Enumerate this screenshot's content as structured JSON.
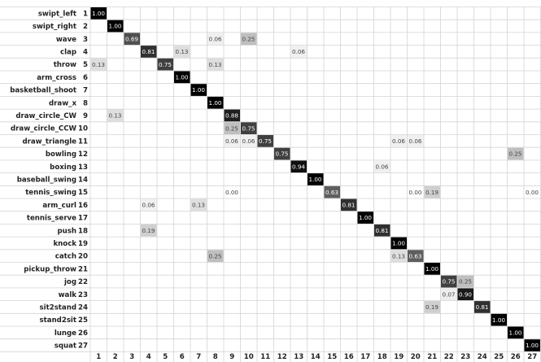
{
  "chart_data": {
    "type": "heatmap",
    "row_labels": [
      "swipt_left",
      "swipt_right",
      "wave",
      "clap",
      "throw",
      "arm_cross",
      "basketball_shoot",
      "draw_x",
      "draw_circle_CW",
      "draw_circle_CCW",
      "draw_triangle",
      "bowling",
      "boxing",
      "baseball_swing",
      "tennis_swing",
      "arm_curl",
      "tennis_serve",
      "push",
      "knock",
      "catch",
      "pickup_throw",
      "jog",
      "walk",
      "sit2stand",
      "stand2sit",
      "lunge",
      "squat"
    ],
    "row_numbers": [
      "1",
      "2",
      "3",
      "4",
      "5",
      "6",
      "7",
      "8",
      "9",
      "10",
      "11",
      "12",
      "13",
      "14",
      "15",
      "16",
      "17",
      "18",
      "19",
      "20",
      "21",
      "22",
      "23",
      "24",
      "25",
      "26",
      "27"
    ],
    "col_labels": [
      "1",
      "2",
      "3",
      "4",
      "5",
      "6",
      "7",
      "8",
      "9",
      "10",
      "11",
      "12",
      "13",
      "14",
      "15",
      "16",
      "17",
      "18",
      "19",
      "20",
      "21",
      "22",
      "23",
      "24",
      "25",
      "26",
      "27"
    ],
    "cells": [
      {
        "row": 1,
        "col": 1,
        "label": "1.00",
        "value": 1.0
      },
      {
        "row": 2,
        "col": 2,
        "label": "1.00",
        "value": 1.0
      },
      {
        "row": 3,
        "col": 3,
        "label": "0.69",
        "value": 0.69
      },
      {
        "row": 3,
        "col": 8,
        "label": "0.06",
        "value": 0.06
      },
      {
        "row": 3,
        "col": 10,
        "label": "0.25",
        "value": 0.25
      },
      {
        "row": 4,
        "col": 4,
        "label": "0.81",
        "value": 0.81
      },
      {
        "row": 4,
        "col": 6,
        "label": "0.13",
        "value": 0.13
      },
      {
        "row": 4,
        "col": 13,
        "label": "0.06",
        "value": 0.06
      },
      {
        "row": 5,
        "col": 1,
        "label": "0.13",
        "value": 0.13
      },
      {
        "row": 5,
        "col": 5,
        "label": "0.75",
        "value": 0.75
      },
      {
        "row": 5,
        "col": 8,
        "label": "0.13",
        "value": 0.13
      },
      {
        "row": 6,
        "col": 6,
        "label": "1.00",
        "value": 1.0
      },
      {
        "row": 7,
        "col": 7,
        "label": "1.00",
        "value": 1.0
      },
      {
        "row": 8,
        "col": 8,
        "label": "1.00",
        "value": 1.0
      },
      {
        "row": 9,
        "col": 2,
        "label": "0.13",
        "value": 0.13
      },
      {
        "row": 9,
        "col": 9,
        "label": "0.88",
        "value": 0.88
      },
      {
        "row": 10,
        "col": 9,
        "label": "0.25",
        "value": 0.25
      },
      {
        "row": 10,
        "col": 10,
        "label": "0.75",
        "value": 0.75
      },
      {
        "row": 11,
        "col": 9,
        "label": "0.06",
        "value": 0.06
      },
      {
        "row": 11,
        "col": 10,
        "label": "0.06",
        "value": 0.06
      },
      {
        "row": 11,
        "col": 11,
        "label": "0.75",
        "value": 0.75
      },
      {
        "row": 11,
        "col": 19,
        "label": "0.06",
        "value": 0.06
      },
      {
        "row": 11,
        "col": 20,
        "label": "0.06",
        "value": 0.06
      },
      {
        "row": 12,
        "col": 12,
        "label": "0.75",
        "value": 0.75
      },
      {
        "row": 12,
        "col": 26,
        "label": "0.25",
        "value": 0.25
      },
      {
        "row": 13,
        "col": 13,
        "label": "0.94",
        "value": 0.94
      },
      {
        "row": 13,
        "col": 18,
        "label": "0.06",
        "value": 0.06
      },
      {
        "row": 14,
        "col": 14,
        "label": "1.00",
        "value": 1.0
      },
      {
        "row": 15,
        "col": 9,
        "label": "0.00",
        "value": 0.0
      },
      {
        "row": 15,
        "col": 15,
        "label": "0.63",
        "value": 0.63
      },
      {
        "row": 15,
        "col": 20,
        "label": "0.00",
        "value": 0.0
      },
      {
        "row": 15,
        "col": 21,
        "label": "0.19",
        "value": 0.19
      },
      {
        "row": 15,
        "col": 27,
        "label": "0.00",
        "value": 0.0
      },
      {
        "row": 16,
        "col": 4,
        "label": "0.06",
        "value": 0.06
      },
      {
        "row": 16,
        "col": 7,
        "label": "0.13",
        "value": 0.13
      },
      {
        "row": 16,
        "col": 16,
        "label": "0.81",
        "value": 0.81
      },
      {
        "row": 17,
        "col": 17,
        "label": "1.00",
        "value": 1.0
      },
      {
        "row": 18,
        "col": 4,
        "label": "0.19",
        "value": 0.19
      },
      {
        "row": 18,
        "col": 18,
        "label": "0.81",
        "value": 0.81
      },
      {
        "row": 19,
        "col": 19,
        "label": "1.00",
        "value": 1.0
      },
      {
        "row": 20,
        "col": 8,
        "label": "0.25",
        "value": 0.25
      },
      {
        "row": 20,
        "col": 19,
        "label": "0.13",
        "value": 0.13
      },
      {
        "row": 20,
        "col": 20,
        "label": "0.63",
        "value": 0.63
      },
      {
        "row": 21,
        "col": 21,
        "label": "1.00",
        "value": 1.0
      },
      {
        "row": 22,
        "col": 22,
        "label": "0.75",
        "value": 0.75
      },
      {
        "row": 22,
        "col": 23,
        "label": "0.25",
        "value": 0.25
      },
      {
        "row": 23,
        "col": 22,
        "label": "0.07",
        "value": 0.07
      },
      {
        "row": 23,
        "col": 23,
        "label": "0.90",
        "value": 0.9
      },
      {
        "row": 24,
        "col": 21,
        "label": "0.19",
        "value": 0.19
      },
      {
        "row": 24,
        "col": 24,
        "label": "0.81",
        "value": 0.81
      },
      {
        "row": 25,
        "col": 25,
        "label": "1.00",
        "value": 1.0
      },
      {
        "row": 26,
        "col": 26,
        "label": "1.00",
        "value": 1.0
      },
      {
        "row": 27,
        "col": 27,
        "label": "1.00",
        "value": 1.0
      }
    ],
    "grid": true,
    "color_scale": {
      "low": "#ffffff",
      "high": "#000000"
    }
  }
}
